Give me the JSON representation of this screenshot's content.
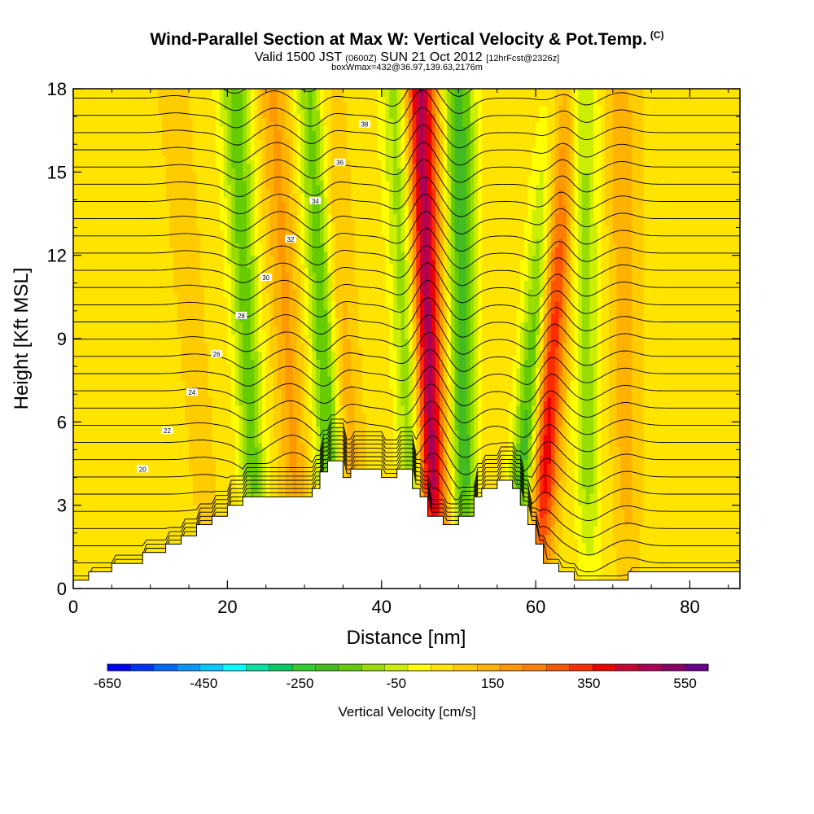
{
  "header": {
    "title": "Wind-Parallel Section at Max W: Vertical Velocity & Pot.Temp.",
    "copyright": "(C)",
    "valid_prefix": "Valid 1500 JST",
    "valid_zulu": "(0600Z)",
    "valid_date": "SUN 21 Oct 2012",
    "forecast": "[12hrFcst@2326z]",
    "box_info": "boxWmax=432@36.97,139.63,2176m"
  },
  "chart_data": {
    "type": "heatmap",
    "xlabel": "Distance [nm]",
    "ylabel": "Height [Kft MSL]",
    "xlim": [
      0,
      86.5
    ],
    "ylim": [
      0,
      18
    ],
    "x_ticks": [
      0,
      20,
      40,
      60,
      80
    ],
    "y_ticks": [
      0,
      3,
      6,
      9,
      12,
      15,
      18
    ],
    "colorbar": {
      "title": "Vertical Velocity [cm/s]",
      "tick_labels": [
        "-650",
        "-450",
        "-250",
        "-50",
        "150",
        "350",
        "550"
      ],
      "tick_values": [
        -650,
        -450,
        -250,
        -50,
        150,
        350,
        550
      ],
      "colors": [
        "#0000ff",
        "#0032ff",
        "#0066ff",
        "#0099ff",
        "#00ccff",
        "#00ffff",
        "#00e6a0",
        "#00cc66",
        "#33cc33",
        "#44bb22",
        "#66cc00",
        "#99dd00",
        "#ccee00",
        "#ffff00",
        "#ffe400",
        "#ffcc00",
        "#ffb300",
        "#ff9900",
        "#ff7f00",
        "#ff5500",
        "#ff2a00",
        "#ee0000",
        "#cc0033",
        "#aa0055",
        "#880066",
        "#660088"
      ]
    },
    "updrafts": [
      {
        "x_bottom": 18,
        "x_top": 13,
        "amplitude": 40
      },
      {
        "x_bottom": 29.5,
        "x_top": 26,
        "amplitude": 120
      },
      {
        "x_bottom": 37,
        "x_top": 32.5,
        "amplitude": 100
      },
      {
        "x_bottom": 47,
        "x_top": 45,
        "amplitude": 430
      },
      {
        "x_bottom": 60.5,
        "x_top": 63.5,
        "amplitude": 340
      },
      {
        "x_bottom": 72,
        "x_top": 71,
        "amplitude": 90
      }
    ],
    "downdrafts": [
      {
        "x_bottom": 24,
        "x_top": 21,
        "amplitude": -200
      },
      {
        "x_bottom": 34,
        "x_top": 31,
        "amplitude": -230
      },
      {
        "x_bottom": 44.5,
        "x_top": 42,
        "amplitude": -170
      },
      {
        "x_bottom": 51,
        "x_top": 50,
        "amplitude": -250
      },
      {
        "x_bottom": 57,
        "x_top": 63,
        "amplitude": -260
      },
      {
        "x_bottom": 67,
        "x_top": 66,
        "amplitude": -150
      }
    ],
    "terrain": [
      {
        "x": 0,
        "h": 0.3
      },
      {
        "x": 2,
        "h": 0.6
      },
      {
        "x": 5,
        "h": 0.9
      },
      {
        "x": 9,
        "h": 1.3
      },
      {
        "x": 12,
        "h": 1.6
      },
      {
        "x": 14,
        "h": 1.9
      },
      {
        "x": 16,
        "h": 2.3
      },
      {
        "x": 18,
        "h": 2.6
      },
      {
        "x": 20,
        "h": 3.0
      },
      {
        "x": 22,
        "h": 3.3
      },
      {
        "x": 29,
        "h": 3.3
      },
      {
        "x": 31,
        "h": 3.6
      },
      {
        "x": 32,
        "h": 4.2
      },
      {
        "x": 33,
        "h": 4.6
      },
      {
        "x": 35,
        "h": 4.0
      },
      {
        "x": 36,
        "h": 4.3
      },
      {
        "x": 40,
        "h": 4.0
      },
      {
        "x": 42,
        "h": 4.3
      },
      {
        "x": 44,
        "h": 3.6
      },
      {
        "x": 45,
        "h": 3.3
      },
      {
        "x": 46,
        "h": 2.6
      },
      {
        "x": 48,
        "h": 2.3
      },
      {
        "x": 50,
        "h": 2.6
      },
      {
        "x": 52,
        "h": 3.3
      },
      {
        "x": 53,
        "h": 3.6
      },
      {
        "x": 55,
        "h": 3.9
      },
      {
        "x": 57,
        "h": 3.6
      },
      {
        "x": 58,
        "h": 3.0
      },
      {
        "x": 59,
        "h": 2.3
      },
      {
        "x": 60,
        "h": 1.6
      },
      {
        "x": 61,
        "h": 0.9
      },
      {
        "x": 63,
        "h": 0.6
      },
      {
        "x": 65,
        "h": 0.3
      },
      {
        "x": 70,
        "h": 0.3
      },
      {
        "x": 72,
        "h": 0.6
      },
      {
        "x": 77,
        "h": 0.6
      },
      {
        "x": 86.5,
        "h": 0.6
      }
    ],
    "isentrope_labels": [
      "20",
      "22",
      "24",
      "26",
      "28",
      "30",
      "32",
      "34",
      "36",
      "38"
    ]
  }
}
